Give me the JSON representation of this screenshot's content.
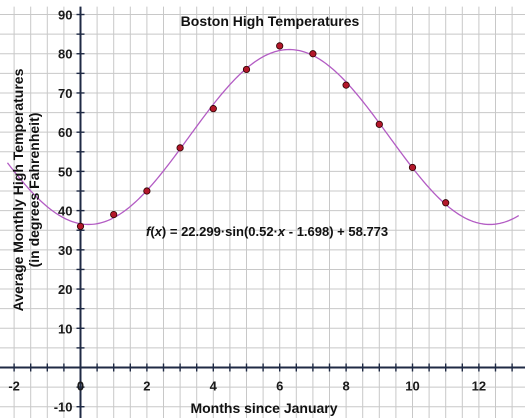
{
  "chart_data": {
    "type": "scatter",
    "title": "Boston High Temperatures",
    "xlabel": "Months since January",
    "ylabel_lines": [
      "Average Monthly High Temperatures",
      "(in degrees Fahrenheit)"
    ],
    "xlim": [
      -2.2,
      13.2
    ],
    "ylim": [
      -11,
      92
    ],
    "x_ticks": [
      -2,
      0,
      2,
      4,
      6,
      8,
      10,
      12
    ],
    "x_tick_labels": [
      "-2",
      "0",
      "2",
      "4",
      "6",
      "8",
      "10",
      "12"
    ],
    "y_ticks": [
      -10,
      10,
      20,
      30,
      40,
      50,
      60,
      70,
      80,
      90
    ],
    "y_tick_labels": [
      "-10",
      "10",
      "20",
      "30",
      "40",
      "50",
      "60",
      "70",
      "80",
      "90"
    ],
    "grid": true,
    "series": [
      {
        "x": [
          0,
          1,
          2,
          3,
          4,
          5,
          6,
          7,
          8,
          9,
          10,
          11
        ],
        "y": [
          36,
          39,
          45,
          56,
          66,
          76,
          82,
          80,
          72,
          62,
          51,
          42
        ]
      }
    ],
    "model": {
      "a": 22.299,
      "b": 0.52,
      "c": -1.698,
      "d": 58.773
    },
    "annotation": {
      "fx": "f",
      "paren_open": "(",
      "var": "x",
      "mid": ") = 22.299·sin(0.52·",
      "var2": "x",
      "tail": " - 1.698) + 58.773"
    },
    "colors": {
      "curve": "#b35cc4",
      "point_fill": "#b3172a",
      "point_stroke": "#2a0000",
      "axis": "#1f2a44",
      "grid": "#c8c8c8"
    }
  }
}
